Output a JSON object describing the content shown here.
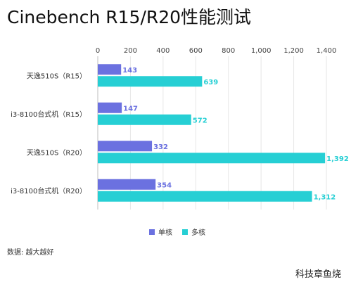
{
  "title": "Cinebench R15/R20性能测试",
  "source": "数据: 越大越好",
  "brand": "科技章鱼烧",
  "colors": {
    "single": "#6b71e0",
    "multi": "#26cfd4"
  },
  "chart_data": {
    "type": "bar",
    "orientation": "horizontal",
    "categories": [
      "天逸510S（R15）",
      "i3-8100台式机（R15）",
      "天逸510S（R20）",
      "i3-8100台式机（R20）"
    ],
    "series": [
      {
        "name": "单核",
        "values": [
          143,
          147,
          332,
          354
        ]
      },
      {
        "name": "多核",
        "values": [
          639,
          572,
          1392,
          1312
        ]
      }
    ],
    "value_labels": [
      [
        "143",
        "147",
        "332",
        "354"
      ],
      [
        "639",
        "572",
        "1,392",
        "1,312"
      ]
    ],
    "xlim": [
      0,
      1400
    ],
    "xticks": [
      "0",
      "200",
      "400",
      "600",
      "800",
      "1,000",
      "1,200",
      "1,400"
    ],
    "legend_position": "bottom",
    "grid": true
  }
}
